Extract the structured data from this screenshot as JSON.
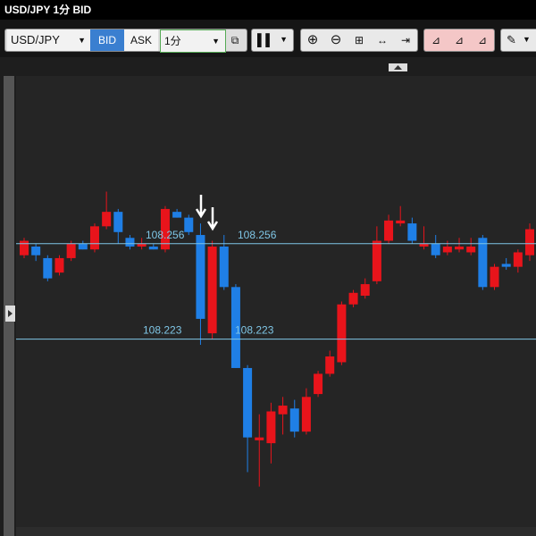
{
  "window_title": "USD/JPY 1分 BID",
  "toolbar": {
    "symbol": "USD/JPY",
    "bid": "BID",
    "ask": "ASK",
    "interval": "1分"
  },
  "chart_data": {
    "type": "candlestick",
    "up_color": "#e8141b",
    "down_color": "#1f7fe6",
    "line_color": "#7fc6e6",
    "ylim": [
      108.158,
      108.314
    ],
    "open": [
      108.252,
      108.255,
      108.251,
      108.246,
      108.251,
      108.256,
      108.254,
      108.262,
      108.267,
      108.258,
      108.255,
      108.255,
      108.254,
      108.267,
      108.265,
      108.259,
      108.225,
      108.255,
      108.241,
      108.213,
      108.188,
      108.187,
      108.197,
      108.199,
      108.191,
      108.204,
      108.211,
      108.215,
      108.235,
      108.238,
      108.243,
      108.257,
      108.263,
      108.263,
      108.255,
      108.256,
      108.253,
      108.254,
      108.253,
      108.258,
      108.241,
      108.249,
      108.248,
      108.252
    ],
    "high": [
      108.258,
      108.256,
      108.252,
      108.252,
      108.257,
      108.257,
      108.263,
      108.274,
      108.268,
      108.259,
      108.258,
      108.256,
      108.269,
      108.268,
      108.266,
      108.263,
      108.257,
      108.259,
      108.242,
      108.214,
      108.197,
      108.201,
      108.203,
      108.202,
      108.206,
      108.212,
      108.219,
      108.236,
      108.24,
      108.244,
      108.262,
      108.266,
      108.269,
      108.265,
      108.262,
      108.259,
      108.257,
      108.258,
      108.258,
      108.259,
      108.249,
      108.251,
      108.254,
      108.263
    ],
    "low": [
      108.251,
      108.25,
      108.243,
      108.245,
      108.25,
      108.254,
      108.253,
      108.261,
      108.256,
      108.254,
      108.254,
      108.254,
      108.253,
      108.265,
      108.259,
      108.221,
      108.223,
      108.24,
      108.213,
      108.177,
      108.172,
      108.18,
      108.19,
      108.189,
      108.19,
      108.203,
      108.21,
      108.214,
      108.234,
      108.237,
      108.242,
      108.256,
      108.262,
      108.256,
      108.254,
      108.251,
      108.252,
      108.253,
      108.252,
      108.24,
      108.24,
      108.247,
      108.246,
      108.25
    ],
    "close": [
      108.257,
      108.252,
      108.244,
      108.251,
      108.256,
      108.254,
      108.262,
      108.267,
      108.26,
      108.255,
      108.256,
      108.254,
      108.268,
      108.265,
      108.26,
      108.23,
      108.255,
      108.241,
      108.213,
      108.189,
      108.189,
      108.198,
      108.2,
      108.191,
      108.203,
      108.211,
      108.217,
      108.235,
      108.239,
      108.242,
      108.257,
      108.264,
      108.264,
      108.257,
      108.256,
      108.252,
      108.255,
      108.255,
      108.255,
      108.241,
      108.248,
      108.248,
      108.253,
      108.261
    ],
    "price_lines": [
      108.256,
      108.223
    ]
  }
}
